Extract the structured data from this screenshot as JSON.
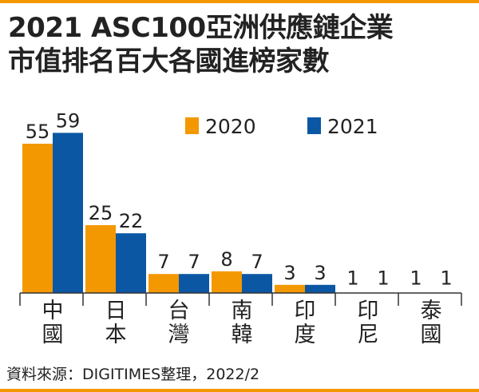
{
  "title_lines": [
    "2021 ASC100亞洲供應鏈企業",
    "市值排名百大各國進榜家數"
  ],
  "source": "資料來源：DIGITIMES整理，2022/2",
  "colors": {
    "accent": "#f39800",
    "series_2020": "#f39800",
    "series_2021": "#0b57a4"
  },
  "chart_data": {
    "type": "bar",
    "title": "2021 ASC100亞洲供應鏈企業市值排名百大各國進榜家數",
    "xlabel": "",
    "ylabel": "",
    "ylim": [
      0,
      60
    ],
    "grid": false,
    "legend_position": "top-right",
    "categories": [
      "中國",
      "日本",
      "台灣",
      "南韓",
      "印度",
      "印尼",
      "泰國"
    ],
    "series": [
      {
        "name": "2020",
        "color": "#f39800",
        "values": [
          55,
          25,
          7,
          8,
          3,
          1,
          1
        ]
      },
      {
        "name": "2021",
        "color": "#0b57a4",
        "values": [
          59,
          22,
          7,
          7,
          3,
          1,
          1
        ]
      }
    ]
  }
}
